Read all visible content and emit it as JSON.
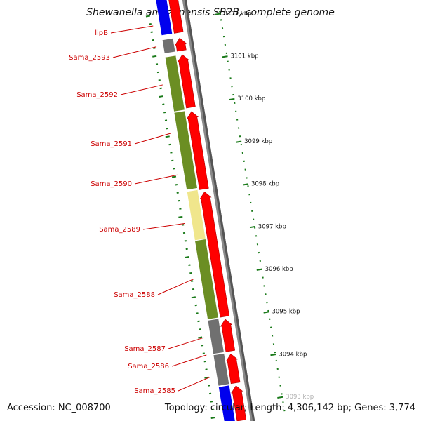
{
  "title": "Shewanella amazonensis SB2B, complete genome",
  "footer": {
    "accession": "Accession: NC_008700",
    "topology": "Topology: circular; Length: 4,306,142 bp; Genes: 3,774"
  },
  "colors": {
    "cds_arrow": "#ff0000",
    "olive": "#6b8e23",
    "khaki": "#f0e68c",
    "grey": "#707070",
    "blue": "#0000ee",
    "magenta": "#e020d0",
    "scale": "#1a7a1a",
    "backbone": "#8a8a8a",
    "label": "#cc0000"
  },
  "ticks": [
    {
      "label": "3102 kbp"
    },
    {
      "label": "3101 kbp"
    },
    {
      "label": "3100 kbp"
    },
    {
      "label": "3099 kbp"
    },
    {
      "label": "3098 kbp"
    },
    {
      "label": "3097 kbp"
    },
    {
      "label": "3096 kbp"
    },
    {
      "label": "3095 kbp"
    },
    {
      "label": "3094 kbp"
    },
    {
      "label": "3093 kbp"
    }
  ],
  "genes": [
    {
      "label": "lipB",
      "category_color": "blue"
    },
    {
      "label": "Sama_2593",
      "category_color": "grey"
    },
    {
      "label": "Sama_2592",
      "category_color": "olive"
    },
    {
      "label": "Sama_2591",
      "category_color": "olive"
    },
    {
      "label": "Sama_2590",
      "category_color": "olive"
    },
    {
      "label": "Sama_2589",
      "category_color": "khaki"
    },
    {
      "label": "Sama_2588",
      "category_color": "olive"
    },
    {
      "label": "Sama_2587",
      "category_color": "grey"
    },
    {
      "label": "Sama_2586",
      "category_color": "grey"
    },
    {
      "label": "Sama_2585",
      "category_color": "blue"
    }
  ]
}
